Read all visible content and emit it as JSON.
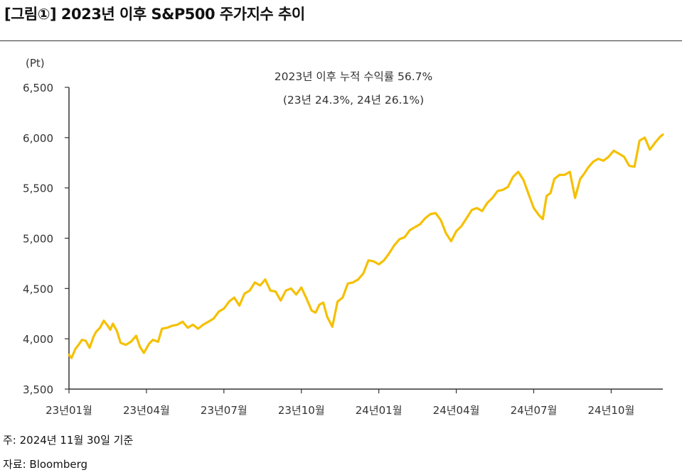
{
  "header": {
    "title": "[그림①] 2023년 이후 S&P500 주가지수 추이"
  },
  "chart_data": {
    "type": "line",
    "title": "2023년 이후 S&P500 주가지수 추이",
    "ylabel": "(Pt)",
    "xlabel": "",
    "ylim": [
      3500,
      6500
    ],
    "yticks": [
      3500,
      4000,
      4500,
      5000,
      5500,
      6000,
      6500
    ],
    "ytick_labels": [
      "3,500",
      "4,000",
      "4,500",
      "5,000",
      "5,500",
      "6,000",
      "6,500"
    ],
    "xlim": [
      0,
      23.0
    ],
    "xticks": [
      0,
      3,
      6,
      9,
      12,
      15,
      18,
      21
    ],
    "xtick_labels": [
      "23년01월",
      "23년04월",
      "23년07월",
      "23년10월",
      "24년01월",
      "24년04월",
      "24년07월",
      "24년10월"
    ],
    "annotation_lines": [
      "2023년 이후 누적 수익률 56.7%",
      "(23년 24.3%, 24년 26.1%)"
    ],
    "line_color": "#F5C000",
    "series": [
      {
        "name": "S&P500",
        "x": [
          0.0,
          0.1,
          0.25,
          0.4,
          0.5,
          0.65,
          0.8,
          0.95,
          1.05,
          1.2,
          1.35,
          1.5,
          1.6,
          1.7,
          1.85,
          2.0,
          2.2,
          2.4,
          2.6,
          2.75,
          2.9,
          3.1,
          3.25,
          3.45,
          3.6,
          3.8,
          4.0,
          4.2,
          4.4,
          4.6,
          4.8,
          5.0,
          5.2,
          5.4,
          5.6,
          5.8,
          6.0,
          6.2,
          6.4,
          6.6,
          6.8,
          7.0,
          7.2,
          7.4,
          7.6,
          7.8,
          8.0,
          8.2,
          8.4,
          8.6,
          8.8,
          9.0,
          9.2,
          9.4,
          9.55,
          9.7,
          9.85,
          10.0,
          10.2,
          10.4,
          10.6,
          10.8,
          11.0,
          11.2,
          11.4,
          11.6,
          11.8,
          12.0,
          12.2,
          12.4,
          12.6,
          12.8,
          13.0,
          13.2,
          13.4,
          13.6,
          13.8,
          14.0,
          14.2,
          14.4,
          14.6,
          14.8,
          15.0,
          15.2,
          15.4,
          15.6,
          15.8,
          16.0,
          16.2,
          16.4,
          16.6,
          16.8,
          17.0,
          17.2,
          17.4,
          17.6,
          17.8,
          18.0,
          18.2,
          18.35,
          18.5,
          18.65,
          18.8,
          19.0,
          19.2,
          19.4,
          19.6,
          19.8,
          19.95,
          20.1,
          20.3,
          20.5,
          20.7,
          20.9,
          21.1,
          21.3,
          21.5,
          21.7,
          21.9,
          22.1,
          22.3,
          22.5,
          22.7,
          22.9,
          23.0
        ],
        "values": [
          3840,
          3810,
          3900,
          3950,
          3990,
          3980,
          3910,
          4020,
          4070,
          4110,
          4180,
          4130,
          4090,
          4150,
          4080,
          3960,
          3940,
          3970,
          4030,
          3920,
          3860,
          3950,
          3990,
          3970,
          4100,
          4110,
          4130,
          4140,
          4170,
          4110,
          4140,
          4100,
          4140,
          4170,
          4200,
          4270,
          4300,
          4370,
          4410,
          4330,
          4450,
          4480,
          4560,
          4530,
          4590,
          4480,
          4470,
          4380,
          4480,
          4500,
          4440,
          4510,
          4400,
          4280,
          4260,
          4340,
          4360,
          4220,
          4120,
          4370,
          4410,
          4550,
          4560,
          4590,
          4650,
          4780,
          4770,
          4740,
          4780,
          4850,
          4930,
          4990,
          5010,
          5080,
          5110,
          5140,
          5200,
          5240,
          5250,
          5180,
          5050,
          4970,
          5070,
          5120,
          5200,
          5280,
          5300,
          5270,
          5350,
          5400,
          5470,
          5480,
          5510,
          5610,
          5660,
          5580,
          5440,
          5300,
          5230,
          5190,
          5420,
          5450,
          5590,
          5630,
          5630,
          5660,
          5400,
          5590,
          5640,
          5700,
          5760,
          5790,
          5770,
          5810,
          5870,
          5840,
          5810,
          5720,
          5710,
          5970,
          6000,
          5880,
          5950,
          6010,
          6030
        ]
      }
    ]
  },
  "footer": {
    "note": "주: 2024년 11월 30일 기준",
    "source": "자료: Bloomberg"
  }
}
